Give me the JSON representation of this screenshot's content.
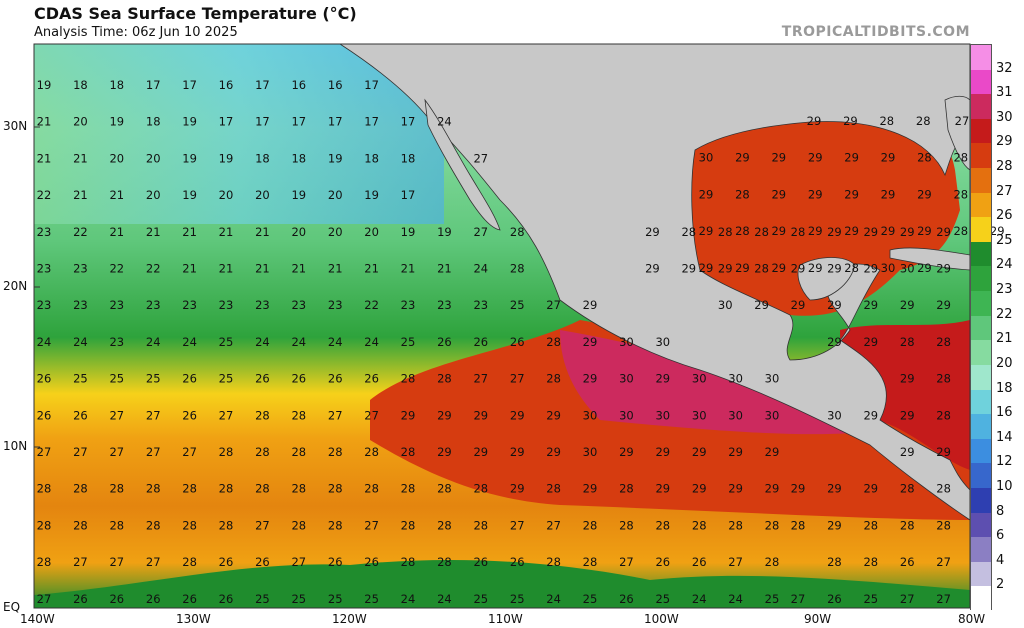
{
  "header": {
    "title": "CDAS Sea Surface Temperature (°C)",
    "subtitle": "Analysis Time: 06z Jun 10 2025",
    "credit": "TROPICALTIDBITS.COM"
  },
  "axes": {
    "lat_labels": [
      "30N",
      "20N",
      "10N",
      "EQ"
    ],
    "lon_labels": [
      "140W",
      "130W",
      "120W",
      "110W",
      "100W",
      "90W",
      "80W"
    ]
  },
  "colorbar": {
    "ticks": [
      "32",
      "31",
      "30",
      "29",
      "28",
      "27",
      "26",
      "25",
      "24",
      "23",
      "22",
      "21",
      "20",
      "18",
      "16",
      "14",
      "12",
      "10",
      "8",
      "6",
      "4",
      "2"
    ],
    "colors": [
      "#f58ee6",
      "#ea49c8",
      "#cc2a5e",
      "#c51b1b",
      "#d63c10",
      "#e4700f",
      "#f0a113",
      "#f6d11a",
      "#1f8c2d",
      "#2ea33c",
      "#3eb553",
      "#5fc77b",
      "#86dba0",
      "#9fe7cc",
      "#6fd2dc",
      "#4fb2e0",
      "#3c8ee0",
      "#3767cc",
      "#2e3fb1",
      "#5d4fb0",
      "#8b7fc3",
      "#c4bfe0"
    ]
  },
  "sst_rows": [
    [
      "19",
      "18",
      "18",
      "17",
      "17",
      "16",
      "17",
      "16",
      "16",
      "17"
    ],
    [
      "21",
      "20",
      "19",
      "18",
      "19",
      "17",
      "17",
      "17",
      "17",
      "17",
      "17",
      "24"
    ],
    [
      "21",
      "21",
      "20",
      "20",
      "19",
      "19",
      "18",
      "18",
      "19",
      "18",
      "18",
      "",
      "27"
    ],
    [
      "22",
      "21",
      "21",
      "20",
      "19",
      "20",
      "20",
      "19",
      "20",
      "19",
      "17"
    ],
    [
      "23",
      "22",
      "21",
      "21",
      "21",
      "21",
      "21",
      "20",
      "20",
      "20",
      "19",
      "19",
      "27",
      "28"
    ],
    [
      "23",
      "23",
      "22",
      "22",
      "21",
      "21",
      "21",
      "21",
      "21",
      "21",
      "21",
      "21",
      "24",
      "28"
    ],
    [
      "23",
      "23",
      "23",
      "23",
      "23",
      "23",
      "23",
      "23",
      "23",
      "22",
      "23",
      "23",
      "23",
      "25",
      "27",
      "29"
    ],
    [
      "24",
      "24",
      "23",
      "24",
      "24",
      "25",
      "24",
      "24",
      "24",
      "24",
      "25",
      "26",
      "26",
      "26",
      "28",
      "29",
      "30",
      "30"
    ],
    [
      "26",
      "25",
      "25",
      "25",
      "26",
      "25",
      "26",
      "26",
      "26",
      "26",
      "28",
      "28",
      "27",
      "27",
      "28",
      "29",
      "30",
      "29",
      "30",
      "30",
      "30"
    ],
    [
      "26",
      "26",
      "27",
      "27",
      "26",
      "27",
      "28",
      "28",
      "27",
      "27",
      "29",
      "29",
      "29",
      "29",
      "29",
      "30",
      "30",
      "30",
      "30",
      "30",
      "30"
    ],
    [
      "27",
      "27",
      "27",
      "27",
      "27",
      "28",
      "28",
      "28",
      "28",
      "28",
      "28",
      "29",
      "29",
      "29",
      "29",
      "30",
      "29",
      "29",
      "29",
      "29",
      "29"
    ],
    [
      "28",
      "28",
      "28",
      "28",
      "28",
      "28",
      "28",
      "28",
      "28",
      "28",
      "28",
      "28",
      "28",
      "29",
      "28",
      "29",
      "28",
      "29",
      "29",
      "29",
      "29"
    ],
    [
      "28",
      "28",
      "28",
      "28",
      "28",
      "28",
      "27",
      "28",
      "28",
      "27",
      "28",
      "28",
      "28",
      "27",
      "27",
      "28",
      "28",
      "28",
      "28",
      "28",
      "28"
    ],
    [
      "28",
      "27",
      "27",
      "27",
      "28",
      "26",
      "26",
      "27",
      "26",
      "26",
      "28",
      "28",
      "26",
      "26",
      "28",
      "28",
      "27",
      "26",
      "26",
      "27",
      "28"
    ],
    [
      "27",
      "26",
      "26",
      "26",
      "26",
      "26",
      "25",
      "25",
      "25",
      "25",
      "24",
      "24",
      "25",
      "25",
      "24",
      "25",
      "26",
      "25",
      "24",
      "24",
      "25"
    ]
  ],
  "sst_row_right": [
    [],
    [],
    [],
    [],
    [
      "29",
      "28",
      "28",
      "28",
      "28",
      "29",
      "29",
      "29",
      "29"
    ],
    [
      "29",
      "29",
      "29",
      "28",
      "29",
      "29",
      "29",
      "30",
      "29"
    ],
    [
      "30",
      "29",
      "29",
      "29",
      "29",
      "29",
      "29"
    ],
    [
      "29",
      "29",
      "28",
      "28"
    ],
    [
      "29",
      "28"
    ],
    [
      "30",
      "29",
      "29",
      "28"
    ],
    [
      "29",
      "29"
    ],
    [
      "29",
      "29",
      "29",
      "28",
      "28"
    ],
    [
      "28",
      "29",
      "28",
      "28",
      "28"
    ],
    [
      "28",
      "28",
      "26",
      "27"
    ],
    [
      "27",
      "26",
      "25",
      "27",
      "27"
    ]
  ],
  "gulf_rows": [
    [
      "29",
      "29",
      "28",
      "28"
    ],
    [
      "30",
      "29",
      "29",
      "29",
      "29",
      "29",
      "28",
      "28"
    ],
    [
      "29",
      "28",
      "29",
      "29",
      "29",
      "29",
      "29",
      "28"
    ],
    [
      "29",
      "28",
      "29",
      "29",
      "29",
      "29",
      "29",
      "28",
      "29"
    ],
    [
      "29",
      "29",
      "29",
      "29",
      "28",
      "30",
      "29"
    ]
  ],
  "atlantic_label": "27"
}
